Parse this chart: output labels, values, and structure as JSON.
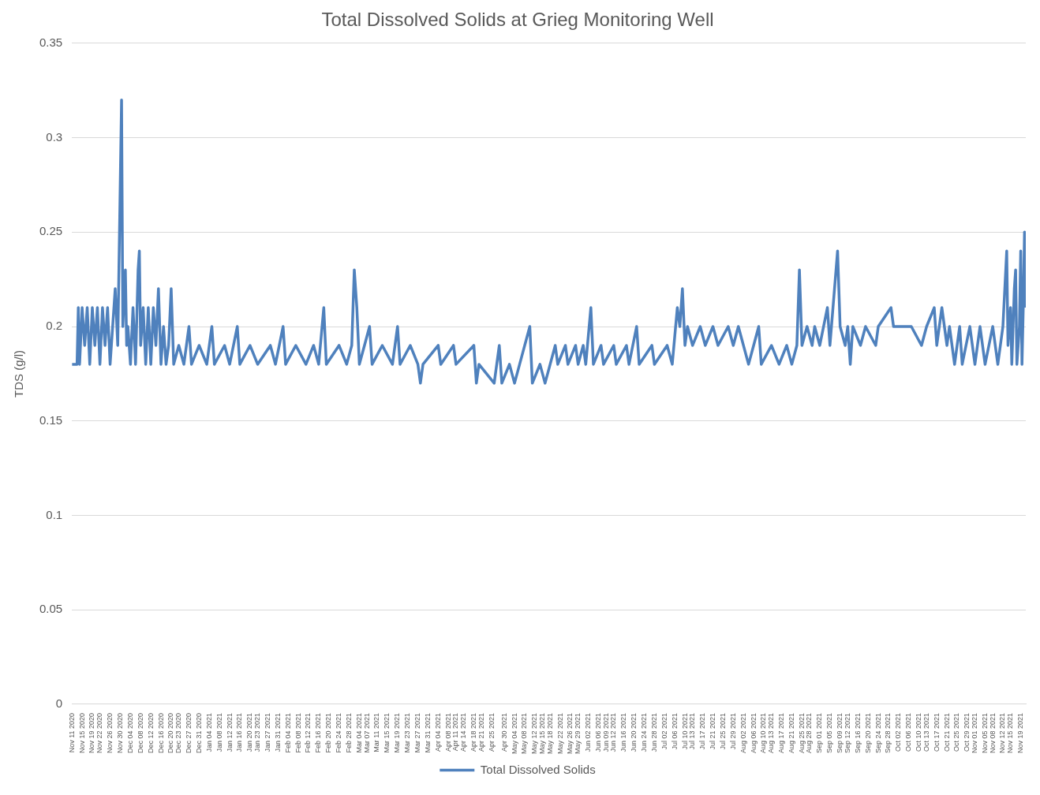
{
  "chart_data": {
    "type": "line",
    "title": "Total Dissolved Solids at Grieg Monitoring Well",
    "ylabel": "TDS (g/l)",
    "xlim": [
      "2020-11-11",
      "2021-11-21"
    ],
    "ylim": [
      0,
      0.35
    ],
    "yticks": [
      0,
      0.05,
      0.1,
      0.15,
      0.2,
      0.25,
      0.3,
      0.35
    ],
    "xticks": [
      {
        "value": "2020-11-11",
        "label": "Nov 11 2020"
      },
      {
        "value": "2020-11-15",
        "label": "Nov 15 2020"
      },
      {
        "value": "2020-11-19",
        "label": "Nov 19 2020"
      },
      {
        "value": "2020-11-22",
        "label": "Nov 22 2020"
      },
      {
        "value": "2020-11-26",
        "label": "Nov 26 2020"
      },
      {
        "value": "2020-11-30",
        "label": "Nov 30 2020"
      },
      {
        "value": "2020-12-04",
        "label": "Dec 04 2020"
      },
      {
        "value": "2020-12-08",
        "label": "Dec 08 2020"
      },
      {
        "value": "2020-12-12",
        "label": "Dec 12 2020"
      },
      {
        "value": "2020-12-16",
        "label": "Dec 16 2020"
      },
      {
        "value": "2020-12-20",
        "label": "Dec 20 2020"
      },
      {
        "value": "2020-12-23",
        "label": "Dec 23 2020"
      },
      {
        "value": "2020-12-27",
        "label": "Dec 27 2020"
      },
      {
        "value": "2020-12-31",
        "label": "Dec 31 2020"
      },
      {
        "value": "2021-01-04",
        "label": "Jan 04 2021"
      },
      {
        "value": "2021-01-08",
        "label": "Jan 08 2021"
      },
      {
        "value": "2021-01-12",
        "label": "Jan 12 2021"
      },
      {
        "value": "2021-01-16",
        "label": "Jan 16 2021"
      },
      {
        "value": "2021-01-20",
        "label": "Jan 20 2021"
      },
      {
        "value": "2021-01-23",
        "label": "Jan 23 2021"
      },
      {
        "value": "2021-01-27",
        "label": "Jan 27 2021"
      },
      {
        "value": "2021-01-31",
        "label": "Jan 31 2021"
      },
      {
        "value": "2021-02-04",
        "label": "Feb 04 2021"
      },
      {
        "value": "2021-02-08",
        "label": "Feb 08 2021"
      },
      {
        "value": "2021-02-12",
        "label": "Feb 12 2021"
      },
      {
        "value": "2021-02-16",
        "label": "Feb 16 2021"
      },
      {
        "value": "2021-02-20",
        "label": "Feb 20 2021"
      },
      {
        "value": "2021-02-24",
        "label": "Feb 24 2021"
      },
      {
        "value": "2021-02-28",
        "label": "Feb 28 2021"
      },
      {
        "value": "2021-03-04",
        "label": "Mar 04 2021"
      },
      {
        "value": "2021-03-07",
        "label": "Mar 07 2021"
      },
      {
        "value": "2021-03-11",
        "label": "Mar 11 2021"
      },
      {
        "value": "2021-03-15",
        "label": "Mar 15 2021"
      },
      {
        "value": "2021-03-19",
        "label": "Mar 19 2021"
      },
      {
        "value": "2021-03-23",
        "label": "Mar 23 2021"
      },
      {
        "value": "2021-03-27",
        "label": "Mar 27 2021"
      },
      {
        "value": "2021-03-31",
        "label": "Mar 31 2021"
      },
      {
        "value": "2021-04-04",
        "label": "Apr 04 2021"
      },
      {
        "value": "2021-04-08",
        "label": "Apr 08 2021"
      },
      {
        "value": "2021-04-11",
        "label": "Apr 11 2021"
      },
      {
        "value": "2021-04-14",
        "label": "Apr 14 2021"
      },
      {
        "value": "2021-04-18",
        "label": "Apr 18 2021"
      },
      {
        "value": "2021-04-21",
        "label": "Apr 21 2021"
      },
      {
        "value": "2021-04-25",
        "label": "Apr 25 2021"
      },
      {
        "value": "2021-04-30",
        "label": "Apr 30 2021"
      },
      {
        "value": "2021-05-04",
        "label": "May 04 2021"
      },
      {
        "value": "2021-05-08",
        "label": "May 08 2021"
      },
      {
        "value": "2021-05-12",
        "label": "May 12 2021"
      },
      {
        "value": "2021-05-15",
        "label": "May 15 2021"
      },
      {
        "value": "2021-05-18",
        "label": "May 18 2021"
      },
      {
        "value": "2021-05-22",
        "label": "May 22 2021"
      },
      {
        "value": "2021-05-26",
        "label": "May 26 2021"
      },
      {
        "value": "2021-05-29",
        "label": "May 29 2021"
      },
      {
        "value": "2021-06-02",
        "label": "Jun 02 2021"
      },
      {
        "value": "2021-06-06",
        "label": "Jun 06 2021"
      },
      {
        "value": "2021-06-09",
        "label": "Jun 09 2021"
      },
      {
        "value": "2021-06-12",
        "label": "Jun 12 2021"
      },
      {
        "value": "2021-06-16",
        "label": "Jun 16 2021"
      },
      {
        "value": "2021-06-20",
        "label": "Jun 20 2021"
      },
      {
        "value": "2021-06-24",
        "label": "Jun 24 2021"
      },
      {
        "value": "2021-06-28",
        "label": "Jun 28 2021"
      },
      {
        "value": "2021-07-02",
        "label": "Jul 02 2021"
      },
      {
        "value": "2021-07-06",
        "label": "Jul 06 2021"
      },
      {
        "value": "2021-07-10",
        "label": "Jul 10 2021"
      },
      {
        "value": "2021-07-13",
        "label": "Jul 13 2021"
      },
      {
        "value": "2021-07-17",
        "label": "Jul 17 2021"
      },
      {
        "value": "2021-07-21",
        "label": "Jul 21 2021"
      },
      {
        "value": "2021-07-25",
        "label": "Jul 25 2021"
      },
      {
        "value": "2021-07-29",
        "label": "Jul 29 2021"
      },
      {
        "value": "2021-08-02",
        "label": "Aug 02 2021"
      },
      {
        "value": "2021-08-06",
        "label": "Aug 06 2021"
      },
      {
        "value": "2021-08-10",
        "label": "Aug 10 2021"
      },
      {
        "value": "2021-08-13",
        "label": "Aug 13 2021"
      },
      {
        "value": "2021-08-17",
        "label": "Aug 17 2021"
      },
      {
        "value": "2021-08-21",
        "label": "Aug 21 2021"
      },
      {
        "value": "2021-08-25",
        "label": "Aug 25 2021"
      },
      {
        "value": "2021-08-28",
        "label": "Aug 28 2021"
      },
      {
        "value": "2021-09-01",
        "label": "Sep 01 2021"
      },
      {
        "value": "2021-09-05",
        "label": "Sep 05 2021"
      },
      {
        "value": "2021-09-09",
        "label": "Sep 09 2021"
      },
      {
        "value": "2021-09-12",
        "label": "Sep 12 2021"
      },
      {
        "value": "2021-09-16",
        "label": "Sep 16 2021"
      },
      {
        "value": "2021-09-20",
        "label": "Sep 20 2021"
      },
      {
        "value": "2021-09-24",
        "label": "Sep 24 2021"
      },
      {
        "value": "2021-09-28",
        "label": "Sep 28 2021"
      },
      {
        "value": "2021-10-02",
        "label": "Oct 02 2021"
      },
      {
        "value": "2021-10-06",
        "label": "Oct 06 2021"
      },
      {
        "value": "2021-10-10",
        "label": "Oct 10 2021"
      },
      {
        "value": "2021-10-13",
        "label": "Oct 13 2021"
      },
      {
        "value": "2021-10-17",
        "label": "Oct 17 2021"
      },
      {
        "value": "2021-10-21",
        "label": "Oct 21 2021"
      },
      {
        "value": "2021-10-25",
        "label": "Oct 25 2021"
      },
      {
        "value": "2021-10-29",
        "label": "Oct 29 2021"
      },
      {
        "value": "2021-11-01",
        "label": "Nov 01 2021"
      },
      {
        "value": "2021-11-05",
        "label": "Nov 05 2021"
      },
      {
        "value": "2021-11-08",
        "label": "Nov 08 2021"
      },
      {
        "value": "2021-11-12",
        "label": "Nov 12 2021"
      },
      {
        "value": "2021-11-15",
        "label": "Nov 15 2021"
      },
      {
        "value": "2021-11-19",
        "label": "Nov 19 2021"
      }
    ],
    "grid": "y",
    "legend": "bottom",
    "marker": "none",
    "line_style": "solid",
    "series": [
      {
        "name": "Total Dissolved Solids",
        "color": "#4f81bd",
        "x": [
          "2020-11-11",
          "2020-11-13",
          "2020-11-13T12:00",
          "2020-11-14",
          "2020-11-15",
          "2020-11-16",
          "2020-11-17",
          "2020-11-18",
          "2020-11-19",
          "2020-11-20",
          "2020-11-21",
          "2020-11-22",
          "2020-11-23",
          "2020-11-24",
          "2020-11-25",
          "2020-11-26",
          "2020-11-27",
          "2020-11-28",
          "2020-11-29",
          "2020-11-30T12:00",
          "2020-12-01",
          "2020-12-02",
          "2020-12-02T12:00",
          "2020-12-03",
          "2020-12-04",
          "2020-12-05",
          "2020-12-06",
          "2020-12-07",
          "2020-12-07T12:00",
          "2020-12-08",
          "2020-12-09",
          "2020-12-10",
          "2020-12-11",
          "2020-12-12",
          "2020-12-13",
          "2020-12-14",
          "2020-12-15",
          "2020-12-16",
          "2020-12-17",
          "2020-12-18",
          "2020-12-19",
          "2020-12-20",
          "2020-12-21",
          "2020-12-23",
          "2020-12-25",
          "2020-12-27",
          "2020-12-28",
          "2020-12-31",
          "2021-01-03",
          "2021-01-05",
          "2021-01-06",
          "2021-01-10",
          "2021-01-12",
          "2021-01-15",
          "2021-01-16",
          "2021-01-20",
          "2021-01-23",
          "2021-01-28",
          "2021-01-30",
          "2021-02-02",
          "2021-02-03",
          "2021-02-07",
          "2021-02-11",
          "2021-02-14",
          "2021-02-16",
          "2021-02-18",
          "2021-02-19",
          "2021-02-24",
          "2021-02-27",
          "2021-03-01",
          "2021-03-02",
          "2021-03-03",
          "2021-03-04",
          "2021-03-06",
          "2021-03-08",
          "2021-03-09",
          "2021-03-13",
          "2021-03-17",
          "2021-03-19",
          "2021-03-20",
          "2021-03-24",
          "2021-03-27",
          "2021-03-28",
          "2021-03-29",
          "2021-04-04",
          "2021-04-05",
          "2021-04-10",
          "2021-04-11",
          "2021-04-18",
          "2021-04-19",
          "2021-04-20",
          "2021-04-26",
          "2021-04-28",
          "2021-04-29",
          "2021-05-02",
          "2021-05-04",
          "2021-05-06",
          "2021-05-10",
          "2021-05-11",
          "2021-05-14",
          "2021-05-16",
          "2021-05-18",
          "2021-05-20",
          "2021-05-21",
          "2021-05-24",
          "2021-05-25",
          "2021-05-28",
          "2021-05-29",
          "2021-05-31",
          "2021-06-01",
          "2021-06-03",
          "2021-06-04",
          "2021-06-07",
          "2021-06-08",
          "2021-06-12",
          "2021-06-13",
          "2021-06-17",
          "2021-06-18",
          "2021-06-21",
          "2021-06-22",
          "2021-06-27",
          "2021-06-28",
          "2021-07-03",
          "2021-07-05",
          "2021-07-07",
          "2021-07-08",
          "2021-07-09",
          "2021-07-10",
          "2021-07-11",
          "2021-07-13",
          "2021-07-16",
          "2021-07-18",
          "2021-07-21",
          "2021-07-23",
          "2021-07-27",
          "2021-07-29",
          "2021-07-31",
          "2021-08-02",
          "2021-08-04",
          "2021-08-06",
          "2021-08-08",
          "2021-08-09",
          "2021-08-13",
          "2021-08-16",
          "2021-08-19",
          "2021-08-21",
          "2021-08-23",
          "2021-08-24",
          "2021-08-25",
          "2021-08-27",
          "2021-08-29",
          "2021-08-30",
          "2021-09-01",
          "2021-09-04",
          "2021-09-05",
          "2021-09-08",
          "2021-09-09",
          "2021-09-11",
          "2021-09-12",
          "2021-09-13",
          "2021-09-14",
          "2021-09-17",
          "2021-09-19",
          "2021-09-23",
          "2021-09-24",
          "2021-09-29",
          "2021-09-30",
          "2021-10-07",
          "2021-10-11",
          "2021-10-13",
          "2021-10-16",
          "2021-10-17",
          "2021-10-19",
          "2021-10-21",
          "2021-10-22",
          "2021-10-24",
          "2021-10-26",
          "2021-10-27",
          "2021-10-30",
          "2021-11-01",
          "2021-11-03",
          "2021-11-05",
          "2021-11-08",
          "2021-11-10",
          "2021-11-12",
          "2021-11-13T12:00",
          "2021-11-14",
          "2021-11-15",
          "2021-11-15T12:00",
          "2021-11-16T12:00",
          "2021-11-17",
          "2021-11-17T12:00",
          "2021-11-18T12:00",
          "2021-11-19",
          "2021-11-19T12:00",
          "2021-11-20",
          "2021-11-20T12:00",
          "2021-11-21"
        ],
        "values": [
          0.18,
          0.18,
          0.21,
          0.18,
          0.21,
          0.19,
          0.21,
          0.18,
          0.21,
          0.19,
          0.21,
          0.18,
          0.21,
          0.19,
          0.21,
          0.18,
          0.2,
          0.22,
          0.19,
          0.32,
          0.2,
          0.23,
          0.19,
          0.2,
          0.18,
          0.21,
          0.18,
          0.23,
          0.24,
          0.19,
          0.21,
          0.18,
          0.21,
          0.18,
          0.21,
          0.19,
          0.22,
          0.18,
          0.2,
          0.18,
          0.19,
          0.22,
          0.18,
          0.19,
          0.18,
          0.2,
          0.18,
          0.19,
          0.18,
          0.2,
          0.18,
          0.19,
          0.18,
          0.2,
          0.18,
          0.19,
          0.18,
          0.19,
          0.18,
          0.2,
          0.18,
          0.19,
          0.18,
          0.19,
          0.18,
          0.21,
          0.18,
          0.19,
          0.18,
          0.19,
          0.23,
          0.21,
          0.18,
          0.19,
          0.2,
          0.18,
          0.19,
          0.18,
          0.2,
          0.18,
          0.19,
          0.18,
          0.17,
          0.18,
          0.19,
          0.18,
          0.19,
          0.18,
          0.19,
          0.17,
          0.18,
          0.17,
          0.19,
          0.17,
          0.18,
          0.17,
          0.18,
          0.2,
          0.17,
          0.18,
          0.17,
          0.18,
          0.19,
          0.18,
          0.19,
          0.18,
          0.19,
          0.18,
          0.19,
          0.18,
          0.21,
          0.18,
          0.19,
          0.18,
          0.19,
          0.18,
          0.19,
          0.18,
          0.2,
          0.18,
          0.19,
          0.18,
          0.19,
          0.18,
          0.21,
          0.2,
          0.22,
          0.19,
          0.2,
          0.19,
          0.2,
          0.19,
          0.2,
          0.19,
          0.2,
          0.19,
          0.2,
          0.19,
          0.18,
          0.19,
          0.2,
          0.18,
          0.19,
          0.18,
          0.19,
          0.18,
          0.19,
          0.23,
          0.19,
          0.2,
          0.19,
          0.2,
          0.19,
          0.21,
          0.19,
          0.24,
          0.2,
          0.19,
          0.2,
          0.18,
          0.2,
          0.19,
          0.2,
          0.19,
          0.2,
          0.21,
          0.2,
          0.2,
          0.19,
          0.2,
          0.21,
          0.19,
          0.21,
          0.19,
          0.2,
          0.18,
          0.2,
          0.18,
          0.2,
          0.18,
          0.2,
          0.18,
          0.2,
          0.18,
          0.2,
          0.24,
          0.19,
          0.21,
          0.18,
          0.22,
          0.23,
          0.18,
          0.2,
          0.24,
          0.18,
          0.21,
          0.25,
          0.21
        ]
      }
    ]
  }
}
